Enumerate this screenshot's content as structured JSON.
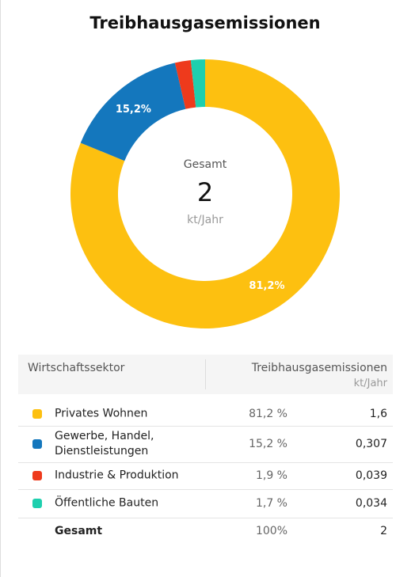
{
  "chart_data": {
    "type": "pie",
    "title": "Treibhausgasemissionen",
    "categories": [
      "Privates Wohnen",
      "Gewerbe, Handel, Dienstleistungen",
      "Industrie & Produktion",
      "Öffentliche Bauten"
    ],
    "values": [
      81.2,
      15.2,
      1.9,
      1.7
    ],
    "value_labels": [
      "81,2%",
      "15,2%",
      null,
      null
    ],
    "colors": [
      "#fdc010",
      "#1477bd",
      "#ee3a1c",
      "#1ecfae"
    ],
    "donut": true,
    "center": {
      "label": "Gesamt",
      "value": "2",
      "unit": "kt/Jahr"
    }
  },
  "table": {
    "headers": [
      "Wirtschaftssektor",
      "Treibhausgasemissionen"
    ],
    "unit": "kt/Jahr",
    "rows": [
      {
        "share": "81,2 %",
        "amount": "1,6"
      },
      {
        "share": "15,2 %",
        "amount": "0,307"
      },
      {
        "share": "1,9 %",
        "amount": "0,039"
      },
      {
        "share": "1,7 %",
        "amount": "0,034"
      }
    ],
    "total": {
      "label": "Gesamt",
      "share": "100%",
      "amount": "2"
    }
  }
}
